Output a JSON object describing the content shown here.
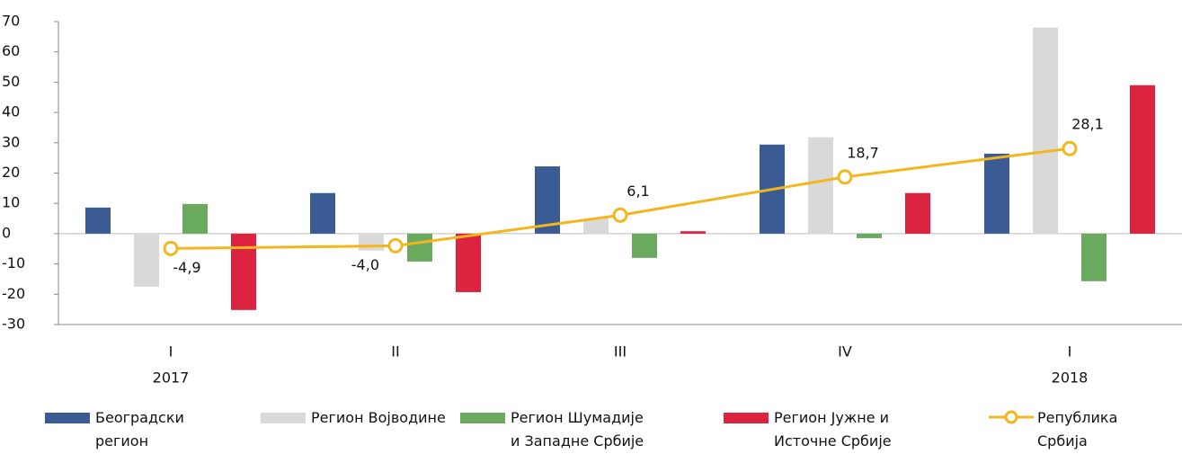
{
  "chart_data": {
    "type": "bar_line",
    "categories": [
      "I",
      "II",
      "III",
      "IV",
      "I"
    ],
    "year_labels": [
      "2017",
      null,
      null,
      null,
      "2018"
    ],
    "ylim": [
      -30,
      70
    ],
    "yticks": [
      -30,
      -20,
      -10,
      0,
      10,
      20,
      30,
      40,
      50,
      60,
      70
    ],
    "series": [
      {
        "name": "Београдски регион",
        "color": "#3a5b94",
        "kind": "bar",
        "values": [
          8.6,
          13.4,
          22.2,
          29.4,
          26.4
        ]
      },
      {
        "name": "Регион Војводине",
        "color": "#d9d9d9",
        "kind": "bar",
        "values": [
          -17.5,
          -5.6,
          5,
          31.8,
          68
        ]
      },
      {
        "name": "Регион Шумадије и Западне Србије",
        "color": "#6aaa5e",
        "kind": "bar",
        "values": [
          9.8,
          -9.2,
          -8,
          -1.5,
          -15.7
        ]
      },
      {
        "name": "Регион Јужне и Источне Србије",
        "color": "#dc2441",
        "kind": "bar",
        "values": [
          -25.2,
          -19.3,
          0.8,
          13.4,
          49
        ]
      },
      {
        "name": "Република Србија",
        "color": "#f2b71e",
        "kind": "line",
        "values": [
          -4.9,
          -4.0,
          6.1,
          18.7,
          28.1
        ],
        "value_labels": [
          "-4,9",
          "-4,0",
          "6,1",
          "18,7",
          "28,1"
        ]
      }
    ]
  }
}
